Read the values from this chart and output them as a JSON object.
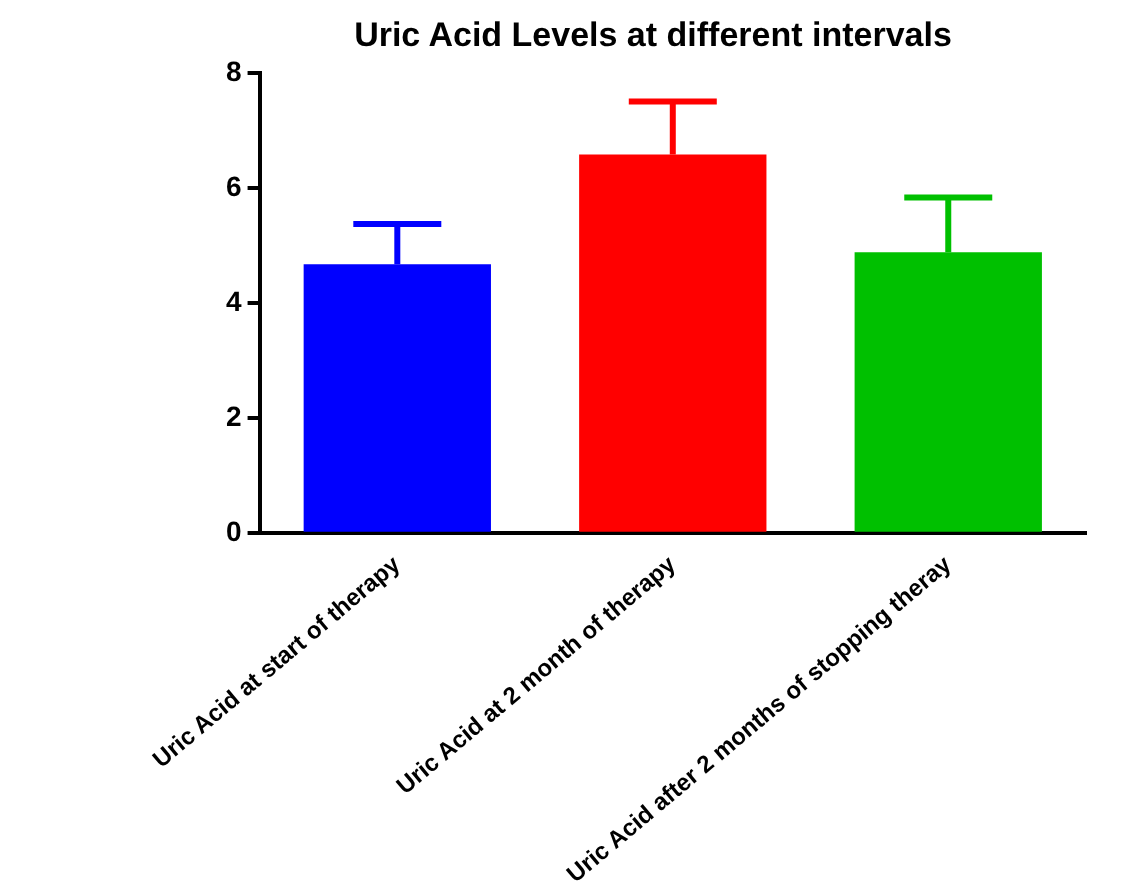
{
  "chart_data": {
    "type": "bar",
    "title": "Uric Acid Levels at different intervals",
    "categories": [
      "Uric Acid at start of therapy",
      "Uric Acid at 2 month of therapy",
      "Uric Acid after 2 months of stopping theray"
    ],
    "values": [
      4.67,
      6.58,
      4.88
    ],
    "colors": [
      "#0000ff",
      "#ff0000",
      "#00c000"
    ],
    "errors": [
      [
        4.67,
        5.37
      ],
      [
        6.58,
        7.5
      ],
      [
        4.88,
        5.83
      ]
    ],
    "ylim": [
      0,
      8
    ],
    "yticks": [
      0,
      2,
      4,
      6,
      8
    ],
    "grid": false,
    "legend": false
  }
}
